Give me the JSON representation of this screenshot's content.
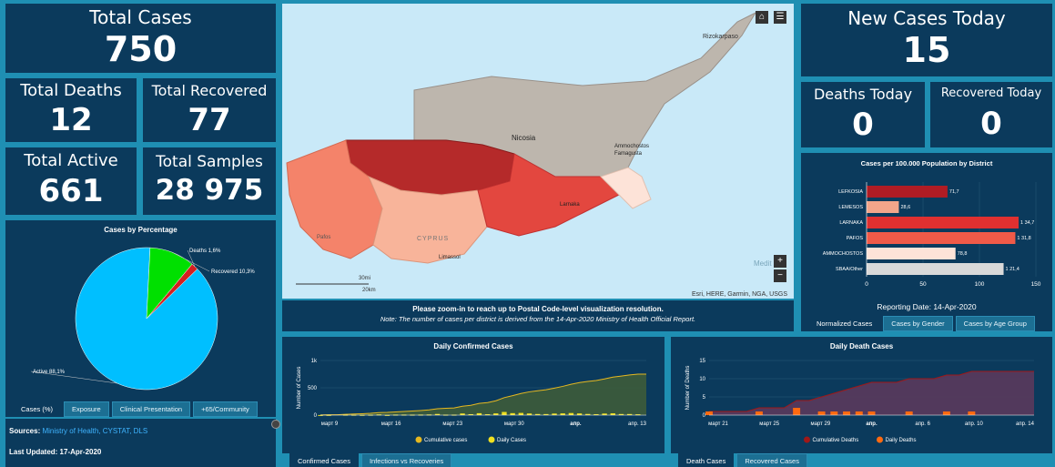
{
  "stats": {
    "total_cases": {
      "label": "Total Cases",
      "value": "750"
    },
    "total_deaths": {
      "label": "Total Deaths",
      "value": "12"
    },
    "total_recovered": {
      "label": "Total Recovered",
      "value": "77"
    },
    "total_active": {
      "label": "Total Active",
      "value": "661"
    },
    "total_samples": {
      "label": "Total Samples",
      "value": "28 975"
    },
    "new_cases_today": {
      "label": "New Cases Today",
      "value": "15"
    },
    "deaths_today": {
      "label": "Deaths Today",
      "value": "0"
    },
    "recovered_today": {
      "label": "Recovered Today",
      "value": "0"
    }
  },
  "pie": {
    "title": "Cases by Percentage",
    "slices": [
      {
        "label": "Active 88,1%",
        "value": 88.1,
        "color": "#00bfff"
      },
      {
        "label": "Recovered 10,3%",
        "value": 10.3,
        "color": "#00e000"
      },
      {
        "label": "Deaths 1,6%",
        "value": 1.6,
        "color": "#d42020"
      }
    ],
    "tabs": [
      "Cases (%)",
      "Exposure",
      "Clinical Presentation",
      "+65/Community"
    ]
  },
  "sources": {
    "label": "Sources:",
    "links": "Ministry of Health, CYSTAT, DLS",
    "updated": "Last Updated: 17-Apr-2020"
  },
  "map": {
    "labels": {
      "karpaso": "Rizokarpaso",
      "nicosia": "Nicosia",
      "ammochostos": "Ammochostos",
      "famagusta": "Famagusta",
      "larnaka": "Larnaka",
      "limassol": "Limassol",
      "pafos": "Pafos",
      "cyprus": "CYPRUS",
      "medit": "Medit"
    },
    "scale": {
      "mi": "30mi",
      "km": "20km"
    },
    "attribution": "Esri, HERE, Garmin, NGA, USGS",
    "zoom_in": "+",
    "zoom_out": "−",
    "note_main": "Please zoom-in to reach up to Postal Code-level visualization resolution.",
    "note_sub": "Note: The number of cases per district is derived from the 14-Apr-2020 Ministry of Health Official Report."
  },
  "district_chart": {
    "title": "Cases per 100.000 Population by District",
    "categories": [
      "LEFKOSIA",
      "LEMESOS",
      "LARNAKA",
      "PAFOS",
      "AMMOCHOSTOS",
      "SBAA/Other"
    ],
    "values": [
      71.7,
      28.6,
      134.7,
      131.8,
      78.8,
      121.4
    ],
    "value_labels": [
      "71,7",
      "28,6",
      "1 34,7",
      "1 31,8",
      "78,8",
      "1 21,4"
    ],
    "colors": [
      "#b01c24",
      "#f2a58a",
      "#e03030",
      "#f05a48",
      "#fde3d8",
      "#d9d9d9"
    ],
    "xticks": [
      "0",
      "50",
      "100",
      "150"
    ],
    "xlim": [
      0,
      150
    ],
    "reporting": "Reporting Date: 14-Apr-2020",
    "tabs": [
      "Normalized Cases",
      "Cases by Gender",
      "Cases by Age Group"
    ]
  },
  "confirmed_chart": {
    "title": "Daily Confirmed Cases",
    "ylabel": "Number of Cases",
    "yticks": [
      "0",
      "500",
      "1k"
    ],
    "ylim": [
      0,
      1000
    ],
    "xticks": [
      "март 9",
      "март 16",
      "март 23",
      "март 30",
      "апр.",
      "апр. 13"
    ],
    "legend": [
      "Cumulative cases",
      "Daily Cases"
    ],
    "cumulative": [
      2,
      6,
      6,
      14,
      21,
      26,
      33,
      46,
      49,
      58,
      67,
      75,
      84,
      95,
      116,
      124,
      132,
      162,
      179,
      214,
      230,
      262,
      320,
      356,
      396,
      426,
      446,
      465,
      494,
      526,
      564,
      595,
      616,
      633,
      662,
      695,
      715,
      735,
      750,
      750
    ],
    "daily": [
      2,
      4,
      0,
      8,
      7,
      5,
      7,
      13,
      3,
      9,
      9,
      8,
      9,
      11,
      21,
      8,
      8,
      30,
      17,
      35,
      16,
      32,
      58,
      36,
      40,
      30,
      20,
      19,
      29,
      32,
      38,
      31,
      21,
      17,
      29,
      33,
      20,
      20,
      15,
      0
    ],
    "tabs": [
      "Confirmed Cases",
      "Infections vs Recoveries"
    ]
  },
  "death_chart": {
    "title": "Daily Death Cases",
    "ylabel": "Number of Deaths",
    "yticks": [
      "0",
      "5",
      "10",
      "15"
    ],
    "ylim": [
      0,
      15
    ],
    "xticks": [
      "март 21",
      "март 25",
      "март 29",
      "апр.",
      "апр. 6",
      "апр. 10",
      "апр. 14"
    ],
    "legend": [
      "Cumulative Deaths",
      "Daily Deaths"
    ],
    "cumulative": [
      1,
      1,
      1,
      1,
      2,
      2,
      2,
      4,
      4,
      5,
      6,
      7,
      8,
      9,
      9,
      9,
      10,
      10,
      10,
      11,
      11,
      12,
      12,
      12,
      12,
      12,
      12
    ],
    "daily": [
      1,
      0,
      0,
      0,
      1,
      0,
      0,
      2,
      0,
      1,
      1,
      1,
      1,
      1,
      0,
      0,
      1,
      0,
      0,
      1,
      0,
      1,
      0,
      0,
      0,
      0,
      0
    ],
    "tabs": [
      "Death Cases",
      "Recovered Cases"
    ]
  },
  "colors": {
    "panel": "#0b3a5c",
    "background": "#1f8fb3",
    "confirmed_fill": "#3d5c3a",
    "confirmed_line": "#e6b820",
    "daily_bar": "#f0e020",
    "death_fill": "#5a3a5c",
    "death_line": "#a01818",
    "death_bar": "#ff6a10"
  }
}
